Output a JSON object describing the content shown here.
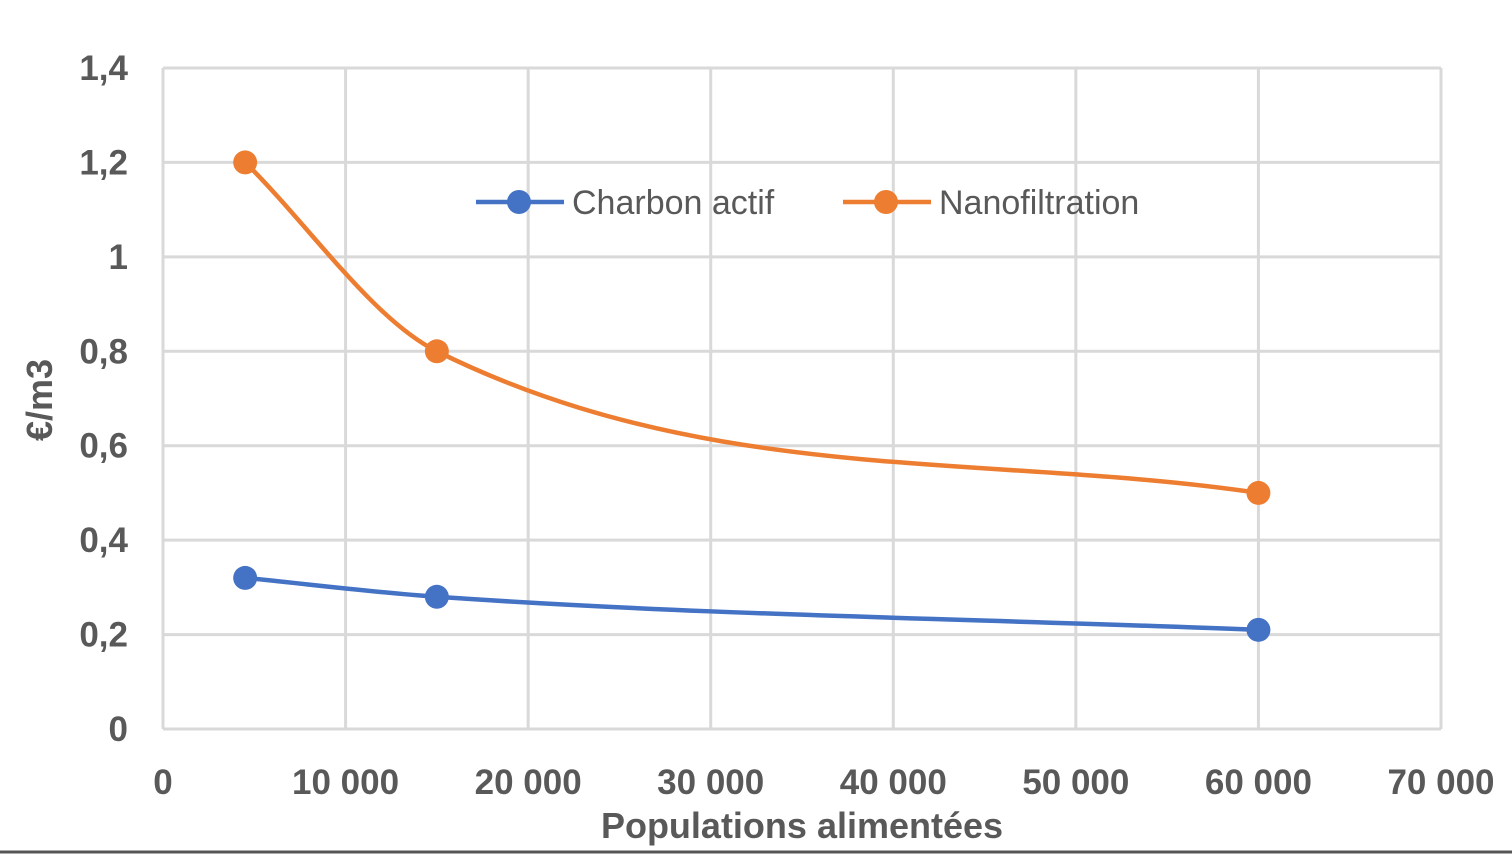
{
  "chart_data": {
    "type": "line",
    "title": "",
    "xlabel": "Populations alimentées",
    "ylabel": "€/m3",
    "xlim": [
      0,
      70000
    ],
    "ylim": [
      0,
      1.4
    ],
    "x_ticks": [
      0,
      10000,
      20000,
      30000,
      40000,
      50000,
      60000,
      70000
    ],
    "x_tick_labels": [
      "0",
      "10 000",
      "20 000",
      "30 000",
      "40 000",
      "50 000",
      "60 000",
      "70 000"
    ],
    "y_ticks": [
      0,
      0.2,
      0.4,
      0.6,
      0.8,
      1,
      1.2,
      1.4
    ],
    "y_tick_labels": [
      "0",
      "0,2",
      "0,4",
      "0,6",
      "0,8",
      "1",
      "1,2",
      "1,4"
    ],
    "grid": true,
    "legend_position": "top",
    "smooth": true,
    "series": [
      {
        "name": "Charbon actif",
        "color": "#4472c4",
        "x": [
          4500,
          15000,
          60000
        ],
        "y": [
          0.32,
          0.28,
          0.21
        ]
      },
      {
        "name": "Nanofiltration",
        "color": "#ed7d31",
        "x": [
          4500,
          15000,
          60000
        ],
        "y": [
          1.2,
          0.8,
          0.5
        ]
      }
    ]
  }
}
